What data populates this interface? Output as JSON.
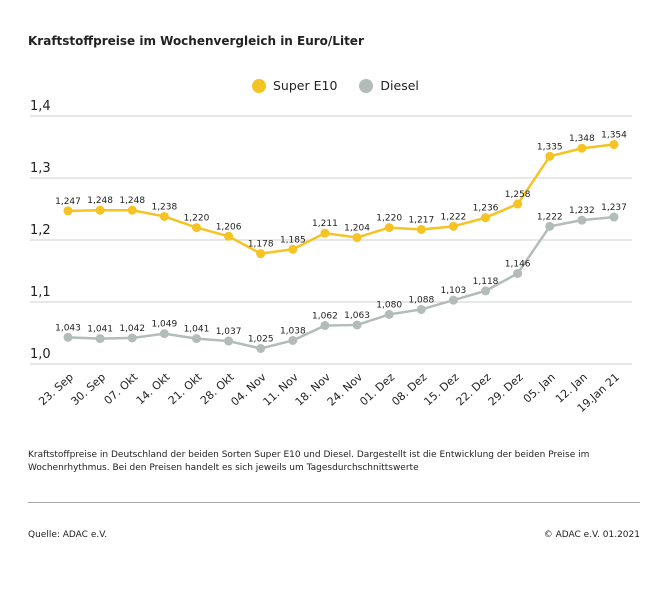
{
  "chart_data": {
    "type": "line",
    "title": "Kraftstoffpreise im Wochenvergleich in Euro/Liter",
    "categories": [
      "23. Sep",
      "30. Sep",
      "07. Okt",
      "14. Okt",
      "21. Okt",
      "28. Okt",
      "04. Nov",
      "11. Nov",
      "18. Nov",
      "24. Nov",
      "01. Dez",
      "08. Dez",
      "15. Dez",
      "22. Dez",
      "29. Dez",
      "05. Jan",
      "12. Jan",
      "19.Jan 21"
    ],
    "series": [
      {
        "name": "Super E10",
        "color": "#f5c323",
        "values": [
          1.247,
          1.248,
          1.248,
          1.238,
          1.22,
          1.206,
          1.178,
          1.185,
          1.211,
          1.204,
          1.22,
          1.217,
          1.222,
          1.236,
          1.258,
          1.335,
          1.348,
          1.354
        ],
        "labels": [
          "1,247",
          "1,248",
          "1,248",
          "1,238",
          "1,220",
          "1,206",
          "1,178",
          "1,185",
          "1,211",
          "1,204",
          "1,220",
          "1,217",
          "1,222",
          "1,236",
          "1,258",
          "1,335",
          "1,348",
          "1,354"
        ]
      },
      {
        "name": "Diesel",
        "color": "#b3bcb8",
        "values": [
          1.043,
          1.041,
          1.042,
          1.049,
          1.041,
          1.037,
          1.025,
          1.038,
          1.062,
          1.063,
          1.08,
          1.088,
          1.103,
          1.118,
          1.146,
          1.222,
          1.232,
          1.237
        ],
        "labels": [
          "1,043",
          "1,041",
          "1,042",
          "1,049",
          "1,041",
          "1,037",
          "1,025",
          "1,038",
          "1,062",
          "1,063",
          "1,080",
          "1,088",
          "1,103",
          "1,118",
          "1,146",
          "1,222",
          "1,232",
          "1,237"
        ]
      }
    ],
    "ylim": [
      1.0,
      1.4
    ],
    "yticks": [
      "1,0",
      "1,1",
      "1,2",
      "1,3",
      "1,4"
    ],
    "grid": true,
    "legend": "top-center"
  },
  "description": "Kraftstoffpreise in Deutschland der beiden Sorten Super E10 und Diesel. Dargestellt ist die Entwicklung der beiden Preise im Wochenrhythmus. Bei den Preisen handelt es sich jeweils um Tagesdurchschnittswerte",
  "source": "Quelle: ADAC e.V.",
  "copyright": "© ADAC e.V. 01.2021"
}
